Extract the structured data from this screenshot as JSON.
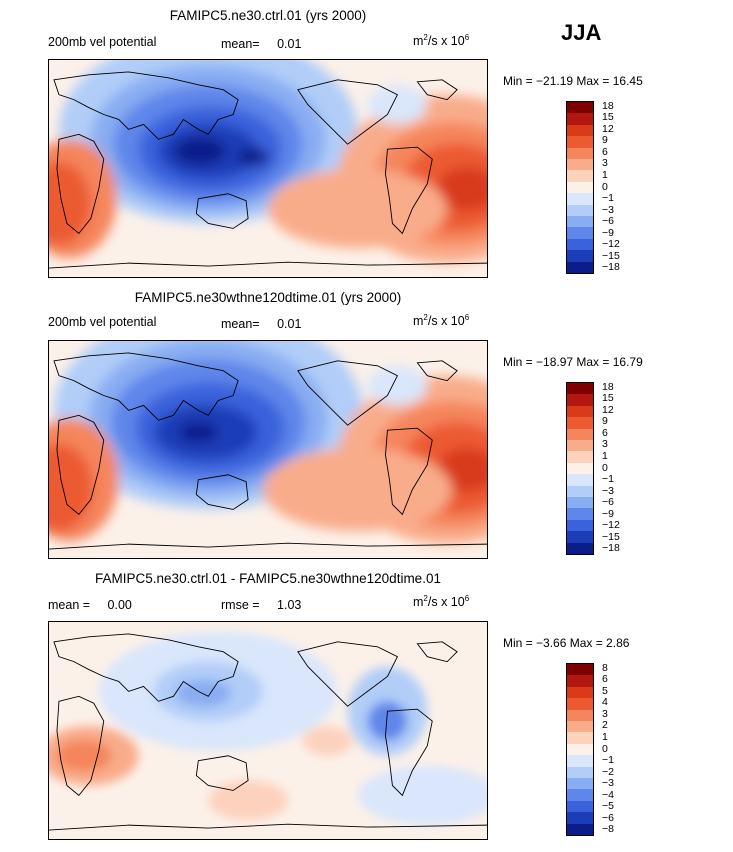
{
  "season": "JJA",
  "units": "m²/s x 10⁶",
  "panels": [
    {
      "title": "FAMIPC5.ne30.ctrl.01 (yrs 2000)",
      "variable": "200mb vel potential",
      "stat_label": "mean=",
      "stat_value": "0.01",
      "minmax": "Min = −21.19 Max = 16.45",
      "levels": [
        "18",
        "15",
        "12",
        "9",
        "6",
        "3",
        "1",
        "0",
        "−1",
        "−3",
        "−6",
        "−9",
        "−12",
        "−15",
        "−18"
      ]
    },
    {
      "title": "FAMIPC5.ne30wthne120dtime.01 (yrs 2000)",
      "variable": "200mb vel potential",
      "stat_label": "mean=",
      "stat_value": "0.01",
      "minmax": "Min = −18.97 Max = 16.79",
      "levels": [
        "18",
        "15",
        "12",
        "9",
        "6",
        "3",
        "1",
        "0",
        "−1",
        "−3",
        "−6",
        "−9",
        "−12",
        "−15",
        "−18"
      ]
    },
    {
      "title": "FAMIPC5.ne30.ctrl.01 - FAMIPC5.ne30wthne120dtime.01",
      "mean_label": "mean =",
      "mean_value": "0.00",
      "rmse_label": "rmse =",
      "rmse_value": "1.03",
      "minmax": "Min = −3.66 Max = 2.86",
      "levels": [
        "8",
        "6",
        "5",
        "4",
        "3",
        "2",
        "1",
        "0",
        "−1",
        "−2",
        "−3",
        "−4",
        "−5",
        "−6",
        "−8"
      ]
    }
  ],
  "colors": {
    "palette": [
      "#7f0000",
      "#b2180f",
      "#d83a1a",
      "#ec5a32",
      "#f5855c",
      "#f9ac8a",
      "#fcd2bc",
      "#fcf1e9",
      "#d9e6fb",
      "#b1cdf8",
      "#89adf2",
      "#5f86ea",
      "#3a62dc",
      "#1b3db8",
      "#0b1d8a"
    ]
  }
}
